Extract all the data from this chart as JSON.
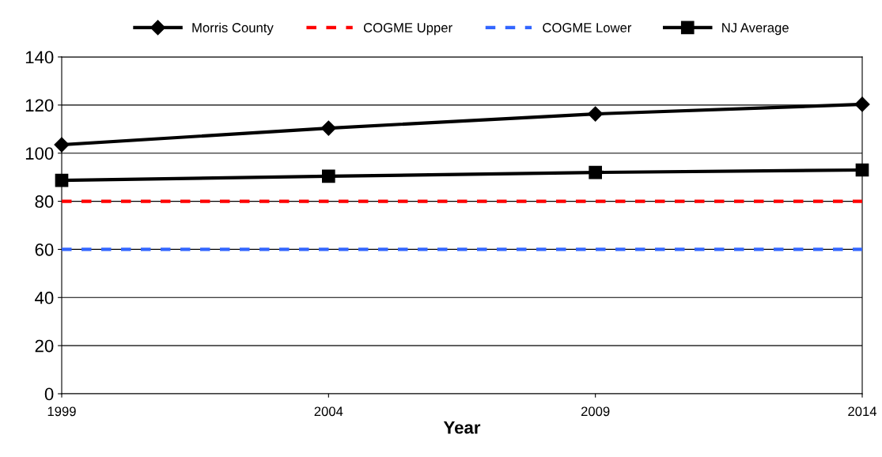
{
  "chart_data": {
    "type": "line",
    "xlabel": "Year",
    "x": [
      1999,
      2004,
      2009,
      2014
    ],
    "series": [
      {
        "name": "Morris County",
        "color": "#000000",
        "marker": "diamond",
        "line_style": "solid",
        "values": [
          103.5,
          110.4,
          116.3,
          120.3
        ]
      },
      {
        "name": "COGME Upper",
        "color": "#ff0000",
        "marker": "none",
        "line_style": "dashed",
        "values": [
          80,
          80,
          80,
          80
        ]
      },
      {
        "name": "COGME Lower",
        "color": "#3366ff",
        "marker": "none",
        "line_style": "dashed",
        "values": [
          60,
          60,
          60,
          60
        ]
      },
      {
        "name": "NJ Average",
        "color": "#000000",
        "marker": "square",
        "line_style": "solid",
        "values": [
          88.7,
          90.4,
          92.0,
          93.0
        ]
      }
    ],
    "xlim": [
      1999,
      2014
    ],
    "xticks": [
      1999,
      2004,
      2009,
      2014
    ],
    "ylim": [
      0,
      140
    ],
    "yticks": [
      0,
      20,
      40,
      60,
      80,
      100,
      120,
      140
    ],
    "grid": "y",
    "legend": "top"
  }
}
